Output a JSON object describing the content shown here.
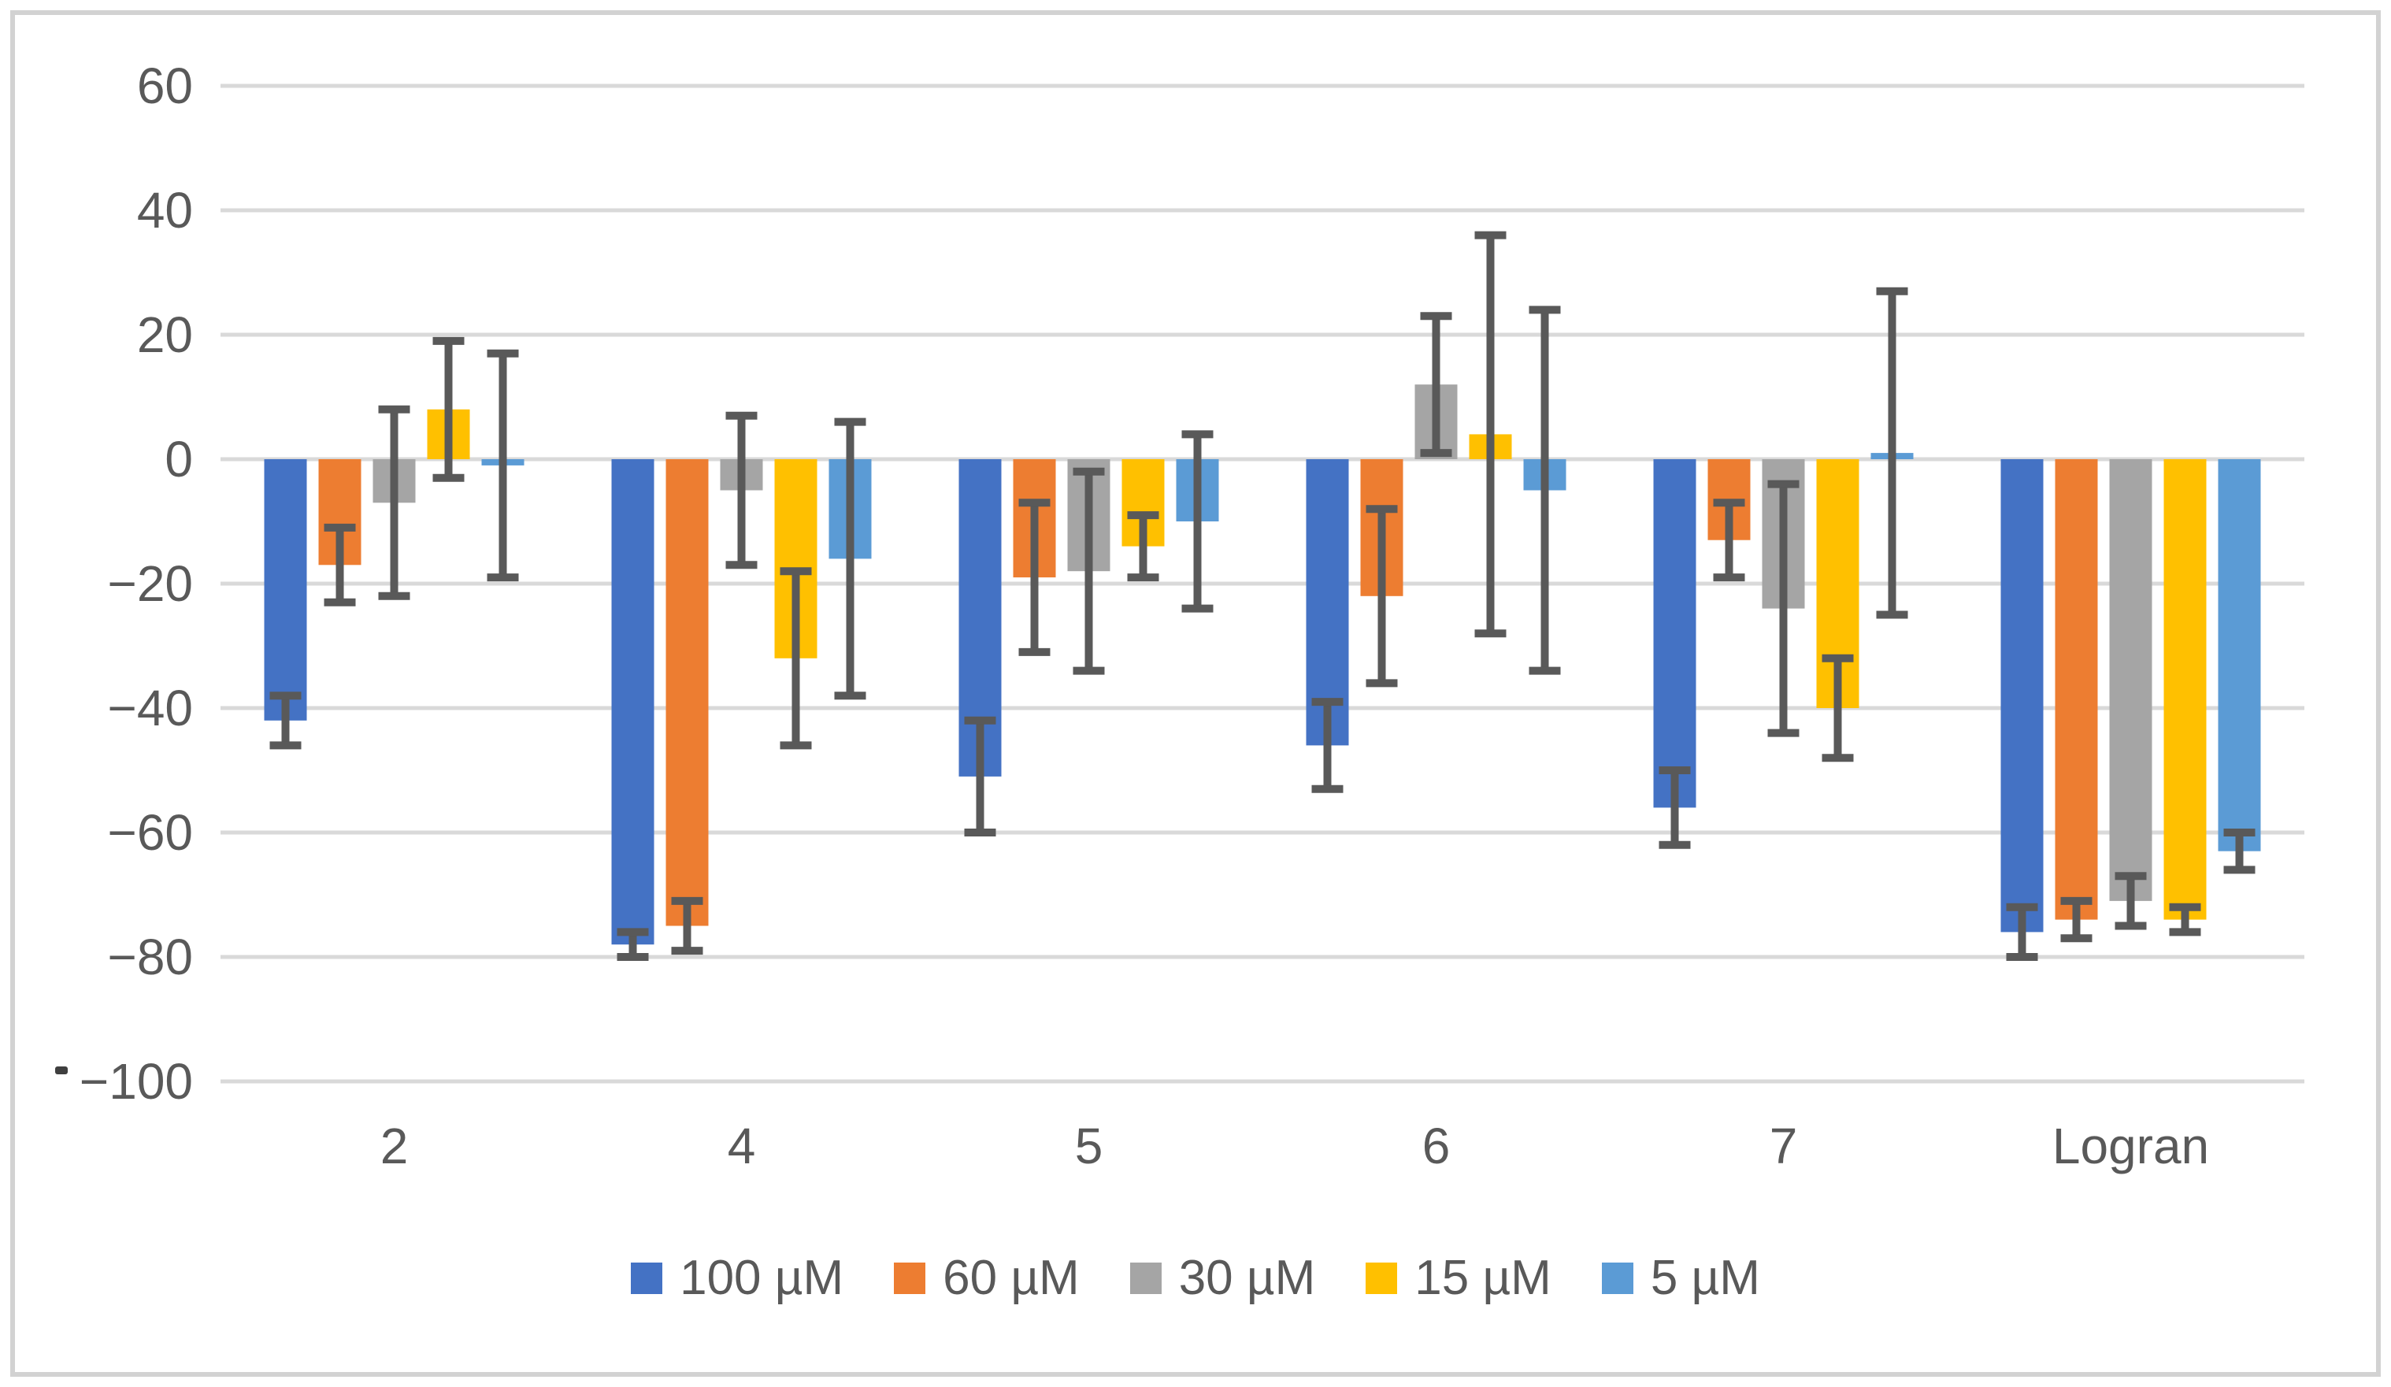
{
  "figure": {
    "background": "#ffffff",
    "border_color": "#d2d2d2"
  },
  "colors": {
    "gridline": "#d9d9d9",
    "axis_text": "#595959",
    "error_bar": "#595959",
    "stray_mark": "#3f3f3f"
  },
  "chart_data": {
    "type": "bar",
    "title": "",
    "xlabel": "",
    "ylabel": "",
    "categories": [
      "2",
      "4",
      "5",
      "6",
      "7",
      "Logran"
    ],
    "series": [
      {
        "name": "100 µM",
        "color": "#4472C4",
        "values": [
          -42,
          -78,
          -51,
          -46,
          -56,
          -76
        ],
        "errors": [
          4,
          2,
          9,
          7,
          6,
          4
        ]
      },
      {
        "name": "60 µM",
        "color": "#ED7D31",
        "values": [
          -17,
          -75,
          -19,
          -22,
          -13,
          -74
        ],
        "errors": [
          6,
          4,
          12,
          14,
          6,
          3
        ]
      },
      {
        "name": "30 µM",
        "color": "#A5A5A5",
        "values": [
          -7,
          -5,
          -18,
          12,
          -24,
          -71
        ],
        "errors": [
          15,
          12,
          16,
          11,
          20,
          4
        ]
      },
      {
        "name": "15 µM",
        "color": "#FFC000",
        "values": [
          8,
          -32,
          -14,
          4,
          -40,
          -74
        ],
        "errors": [
          11,
          14,
          5,
          32,
          8,
          2
        ]
      },
      {
        "name": "5 µM",
        "color": "#5B9BD5",
        "values": [
          -1,
          -16,
          -10,
          -5,
          1,
          -63
        ],
        "errors": [
          18,
          22,
          14,
          29,
          26,
          3
        ]
      }
    ],
    "error_bars": true,
    "grid": true,
    "legend_position": "bottom",
    "ylim": [
      -100,
      60
    ],
    "ytick_values": [
      60,
      40,
      20,
      0,
      -20,
      -40,
      -60,
      -80,
      -100
    ],
    "ytick_labels": [
      "60",
      "40",
      "20",
      "0",
      "−20",
      "−40",
      "−60",
      "−80",
      "−100"
    ]
  }
}
